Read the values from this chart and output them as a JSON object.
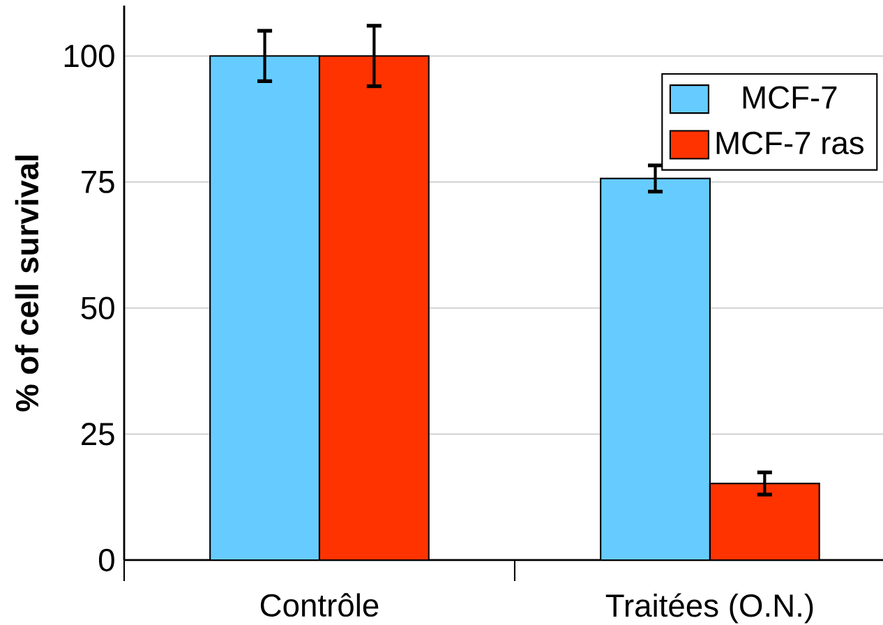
{
  "chart_data": {
    "type": "bar",
    "ylabel": "%  of cell survival",
    "categories": [
      "Contrôle",
      "Traitées (O.N.)"
    ],
    "series": [
      {
        "name": "MCF-7",
        "color": "#66ccff",
        "values": [
          100,
          75.7
        ],
        "errors": [
          5,
          2.6
        ]
      },
      {
        "name": "MCF-7 ras",
        "color": "#ff3300",
        "values": [
          100,
          15.2
        ],
        "errors": [
          6,
          2.2
        ]
      }
    ],
    "ylim": [
      0,
      110
    ],
    "yticks": [
      0,
      25,
      50,
      75,
      100
    ],
    "grid": "y",
    "legend": "top right"
  }
}
